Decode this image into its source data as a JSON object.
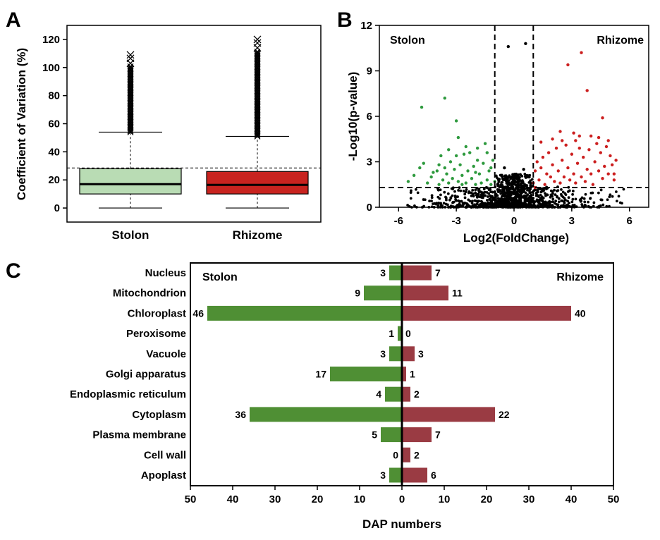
{
  "chart_data": [
    {
      "panel": "A",
      "type": "box",
      "ylabel": "Coefficient of Variation (%)",
      "ylim": [
        -10,
        130
      ],
      "yticks": [
        0,
        20,
        40,
        60,
        80,
        100,
        120
      ],
      "categories": [
        "Stolon",
        "Rhizome"
      ],
      "colors": [
        "#b9dcb4",
        "#c8231f"
      ],
      "series": [
        {
          "name": "Stolon",
          "min": 0,
          "q1": 10,
          "median": 17,
          "q3": 28,
          "whisker_high": 54,
          "outlier_range": [
            54,
            109
          ],
          "max": 109
        },
        {
          "name": "Rhizome",
          "min": 0,
          "q1": 10,
          "median": 16.5,
          "q3": 26,
          "whisker_high": 51,
          "outlier_range": [
            51,
            120
          ],
          "max": 120
        }
      ],
      "reference_line": 28.5
    },
    {
      "panel": "B",
      "type": "scatter",
      "xlabel": "Log2(FoldChange)",
      "ylabel": "-Log10(p-value)",
      "xlim": [
        -7,
        7
      ],
      "ylim": [
        0,
        12
      ],
      "xticks": [
        -6,
        -3,
        0,
        3,
        6
      ],
      "yticks": [
        0,
        3,
        6,
        9,
        12
      ],
      "corner_labels": [
        "Stolon",
        "Rhizome"
      ],
      "thresholds": {
        "x": [
          -1,
          1
        ],
        "y": 1.3
      },
      "colors": {
        "stolon": "#2e9a3e",
        "rhizome": "#cc1f1f",
        "ns": "#000000"
      },
      "series": [
        {
          "name": "Stolon",
          "points": [
            [
              -4.8,
              6.6
            ],
            [
              -3.6,
              7.2
            ],
            [
              -3.0,
              5.7
            ],
            [
              -5.5,
              1.7
            ],
            [
              -5.2,
              2.1
            ],
            [
              -4.9,
              2.6
            ],
            [
              -4.7,
              2.9
            ],
            [
              -4.5,
              1.6
            ],
            [
              -4.3,
              2.0
            ],
            [
              -4.2,
              2.3
            ],
            [
              -4.0,
              2.4
            ],
            [
              -3.9,
              1.5
            ],
            [
              -3.8,
              3.4
            ],
            [
              -3.7,
              1.8
            ],
            [
              -3.6,
              2.6
            ],
            [
              -3.5,
              2.2
            ],
            [
              -3.4,
              1.6
            ],
            [
              -3.3,
              3.0
            ],
            [
              -3.2,
              1.9
            ],
            [
              -3.1,
              2.5
            ],
            [
              -3.0,
              3.4
            ],
            [
              -2.9,
              1.7
            ],
            [
              -2.8,
              2.8
            ],
            [
              -2.7,
              2.1
            ],
            [
              -2.6,
              3.5
            ],
            [
              -2.5,
              1.6
            ],
            [
              -2.4,
              2.4
            ],
            [
              -2.3,
              3.6
            ],
            [
              -2.2,
              1.9
            ],
            [
              -2.1,
              2.7
            ],
            [
              -2.0,
              1.5
            ],
            [
              -1.9,
              3.9
            ],
            [
              -1.8,
              2.2
            ],
            [
              -1.7,
              1.6
            ],
            [
              -1.6,
              2.9
            ],
            [
              -1.5,
              4.2
            ],
            [
              -1.4,
              1.8
            ],
            [
              -1.3,
              2.4
            ],
            [
              -1.2,
              1.5
            ],
            [
              -1.1,
              3.1
            ],
            [
              -1.0,
              1.7
            ],
            [
              -2.9,
              4.6
            ],
            [
              -2.5,
              4.0
            ],
            [
              -1.9,
              3.1
            ],
            [
              -3.4,
              3.8
            ],
            [
              -1.4,
              3.6
            ],
            [
              -2.7,
              1.5
            ],
            [
              -2.0,
              2.3
            ],
            [
              -1.2,
              2.6
            ],
            [
              -3.9,
              2.8
            ]
          ]
        },
        {
          "name": "Rhizome",
          "points": [
            [
              3.5,
              10.2
            ],
            [
              2.8,
              9.4
            ],
            [
              3.8,
              7.7
            ],
            [
              4.6,
              5.9
            ],
            [
              4.4,
              4.6
            ],
            [
              4.0,
              4.7
            ],
            [
              3.1,
              4.9
            ],
            [
              2.4,
              5.0
            ],
            [
              2.0,
              4.5
            ],
            [
              3.4,
              4.7
            ],
            [
              1.0,
              1.6
            ],
            [
              1.1,
              2.4
            ],
            [
              1.2,
              3.0
            ],
            [
              1.3,
              1.8
            ],
            [
              1.4,
              2.6
            ],
            [
              1.5,
              3.3
            ],
            [
              1.6,
              1.5
            ],
            [
              1.7,
              2.2
            ],
            [
              1.8,
              3.6
            ],
            [
              1.9,
              2.0
            ],
            [
              2.0,
              2.8
            ],
            [
              2.1,
              1.7
            ],
            [
              2.2,
              3.9
            ],
            [
              2.3,
              2.4
            ],
            [
              2.4,
              1.6
            ],
            [
              2.5,
              3.1
            ],
            [
              2.6,
              2.0
            ],
            [
              2.7,
              4.1
            ],
            [
              2.8,
              2.6
            ],
            [
              2.9,
              1.8
            ],
            [
              3.0,
              3.5
            ],
            [
              3.1,
              2.2
            ],
            [
              3.2,
              1.6
            ],
            [
              3.3,
              2.9
            ],
            [
              3.4,
              3.9
            ],
            [
              3.5,
              2.0
            ],
            [
              3.6,
              3.3
            ],
            [
              3.7,
              1.7
            ],
            [
              3.8,
              2.5
            ],
            [
              3.9,
              3.8
            ],
            [
              4.0,
              2.2
            ],
            [
              4.1,
              1.5
            ],
            [
              4.2,
              3.0
            ],
            [
              4.3,
              4.2
            ],
            [
              4.4,
              2.4
            ],
            [
              4.5,
              3.6
            ],
            [
              4.6,
              1.9
            ],
            [
              4.7,
              2.7
            ],
            [
              4.8,
              4.0
            ],
            [
              4.9,
              2.2
            ],
            [
              5.0,
              3.4
            ],
            [
              5.1,
              2.8
            ],
            [
              5.2,
              1.8
            ],
            [
              5.3,
              3.1
            ],
            [
              2.5,
              4.4
            ],
            [
              1.4,
              4.3
            ],
            [
              3.2,
              4.4
            ],
            [
              4.9,
              4.4
            ],
            [
              5.2,
              2.2
            ],
            [
              1.1,
              1.3
            ]
          ]
        },
        {
          "name": "Non-significant",
          "points": [
            [
              -0.3,
              10.6
            ],
            [
              0.6,
              10.8
            ],
            [
              -0.5,
              2.6
            ],
            [
              0.5,
              2.5
            ]
          ],
          "note": "dense cloud of non-significant points below -Log10(p)=1.3 and between the fold-change thresholds"
        }
      ]
    },
    {
      "panel": "C",
      "type": "bar",
      "orientation": "horizontal-diverging",
      "xlabel": "DAP numbers",
      "xlim": [
        -50,
        50
      ],
      "xticks": [
        50,
        40,
        30,
        20,
        10,
        0,
        10,
        20,
        30,
        40,
        50
      ],
      "corner_labels": [
        "Stolon",
        "Rhizome"
      ],
      "categories": [
        "Nucleus",
        "Mitochondrion",
        "Chloroplast",
        "Peroxisome",
        "Vacuole",
        "Golgi apparatus",
        "Endoplasmic reticulum",
        "Cytoplasm",
        "Plasma membrane",
        "Cell wall",
        "Apoplast"
      ],
      "series": [
        {
          "name": "Stolon",
          "color": "#4f8f34",
          "values": [
            3,
            9,
            46,
            1,
            3,
            17,
            4,
            36,
            5,
            0,
            3
          ]
        },
        {
          "name": "Rhizome",
          "color": "#9a3b43",
          "values": [
            7,
            11,
            40,
            0,
            3,
            1,
            2,
            22,
            7,
            2,
            6
          ]
        }
      ]
    }
  ],
  "panel_labels": {
    "a": "A",
    "b": "B",
    "c": "C"
  },
  "text": {
    "a_ylabel": "Coefficient of Variation (%)",
    "a_cat1": "Stolon",
    "a_cat2": "Rhizome",
    "b_ylabel": "-Log10(p-value)",
    "b_xlabel": "Log2(FoldChange)",
    "b_left": "Stolon",
    "b_right": "Rhizome",
    "c_left": "Stolon",
    "c_right": "Rhizome",
    "c_xlabel": "DAP numbers"
  }
}
